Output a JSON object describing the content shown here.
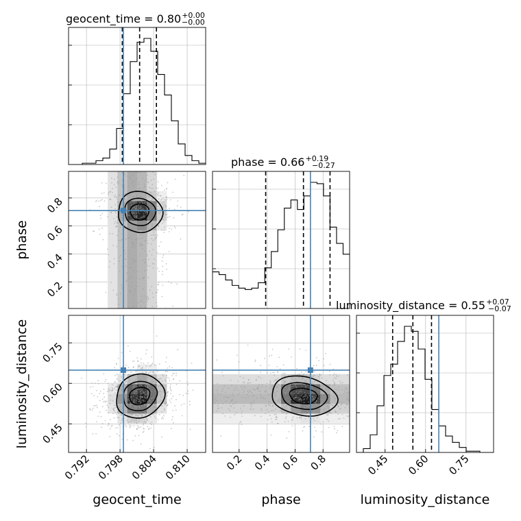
{
  "chart_data": {
    "type": "corner",
    "parameters": [
      "geocent_time",
      "phase",
      "luminosity_distance"
    ],
    "truths": {
      "geocent_time": 0.7986,
      "phase": 0.71,
      "luminosity_distance": 0.649
    },
    "truth_color": "#4682b4",
    "titles": [
      {
        "parameter": "geocent_time",
        "text": "geocent_time = 0.80",
        "plus": "+0.00",
        "minus": "−0.00"
      },
      {
        "parameter": "phase",
        "text": "phase = 0.66",
        "plus": "+0.19",
        "minus": "−0.27"
      },
      {
        "parameter": "luminosity_distance",
        "text": "luminosity_distance = 0.55",
        "plus": "+0.07",
        "minus": "−0.07"
      }
    ],
    "x_ticks": {
      "geocent_time": [
        "0.792",
        "0.798",
        "0.804",
        "0.810"
      ],
      "phase": [
        "0.2",
        "0.4",
        "0.6",
        "0.8"
      ],
      "luminosity_distance": [
        "0.45",
        "0.60",
        "0.75"
      ]
    },
    "y_ticks": {
      "phase": [
        "0.2",
        "0.4",
        "0.6",
        "0.8"
      ],
      "luminosity_distance": [
        "0.45",
        "0.60",
        "0.75"
      ]
    },
    "axis_ranges": {
      "geocent_time": [
        0.7888,
        0.8133
      ],
      "phase": [
        0.01,
        0.99
      ],
      "luminosity_distance": [
        0.344,
        0.852
      ]
    },
    "grid": true,
    "quantiles": {
      "geocent_time": [
        0.7984,
        0.8015,
        0.8045
      ],
      "phase": [
        0.39,
        0.66,
        0.85
      ],
      "luminosity_distance": [
        0.478,
        0.553,
        0.622
      ]
    },
    "histograms": {
      "geocent_time": {
        "range": [
          0.7888,
          0.8133
        ],
        "counts": [
          0.0,
          0.0,
          0.01,
          0.01,
          0.03,
          0.05,
          0.12,
          0.28,
          0.55,
          0.8,
          0.95,
          0.98,
          0.88,
          0.7,
          0.54,
          0.34,
          0.16,
          0.07,
          0.03,
          0.01
        ]
      },
      "phase": {
        "range": [
          0.01,
          0.99
        ],
        "counts": [
          0.27,
          0.25,
          0.21,
          0.17,
          0.15,
          0.14,
          0.15,
          0.19,
          0.3,
          0.42,
          0.58,
          0.74,
          0.8,
          0.73,
          0.83,
          0.93,
          0.92,
          0.83,
          0.6,
          0.48,
          0.4
        ]
      },
      "luminosity_distance": {
        "range": [
          0.344,
          0.852
        ],
        "counts": [
          0.0,
          0.03,
          0.14,
          0.37,
          0.61,
          0.7,
          0.88,
          1.0,
          0.96,
          0.82,
          0.58,
          0.34,
          0.21,
          0.13,
          0.08,
          0.04,
          0.01,
          0.01,
          0.0,
          0.0
        ]
      }
    },
    "contour_levels": [
      "39.3%",
      "86.5%",
      "98.9%"
    ]
  }
}
